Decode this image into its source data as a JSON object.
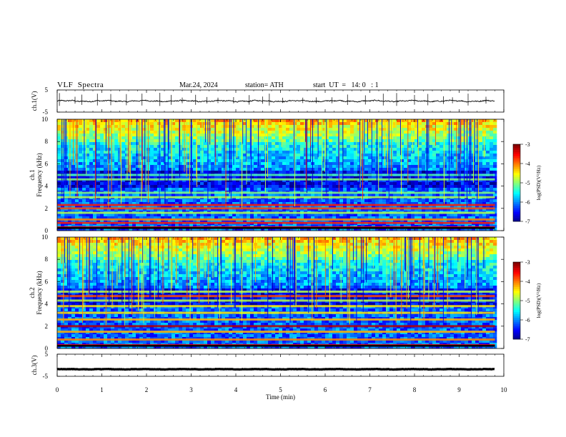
{
  "header": {
    "title": "VLF  Spectra",
    "date": "Mar.24, 2024",
    "station": "station= ATH",
    "start": "start  UT  =   14: 0   : 1"
  },
  "chart_data": [
    {
      "type": "line",
      "panel": "ch1-waveform",
      "ylabel": "ch.1(V)",
      "yticks": [
        "5",
        "-5"
      ],
      "ylim": [
        -5,
        5
      ],
      "xlim": [
        0,
        10
      ],
      "data_end_min": 9.8,
      "level": 0.0,
      "amplitude": 0.5,
      "spikes": [
        0.05,
        0.4,
        0.55,
        0.9,
        1.2,
        1.55,
        1.9,
        2.3,
        2.55,
        2.8,
        3.1,
        3.35,
        3.6,
        3.95,
        4.3,
        4.6,
        4.75,
        5.05,
        5.5,
        5.8,
        6.15,
        6.5,
        6.9,
        7.3,
        7.6,
        8.0,
        8.3,
        8.65,
        8.85,
        9.2,
        9.6
      ]
    },
    {
      "type": "heatmap",
      "panel": "ch1-spectrogram",
      "channel": "ch.1",
      "ylabel": "Frequency  (kHz)",
      "yticks": [
        "0",
        "2",
        "4",
        "6",
        "8",
        "10"
      ],
      "ylim": [
        0,
        10
      ],
      "xlim": [
        0,
        10
      ],
      "data_end_min": 9.8,
      "bands": [
        {
          "f": 0.3,
          "level": 0.9
        },
        {
          "f": 0.7,
          "level": 0.85
        },
        {
          "f": 1.0,
          "level": 0.75
        },
        {
          "f": 1.6,
          "level": 0.55
        },
        {
          "f": 2.0,
          "level": 0.8
        },
        {
          "f": 2.3,
          "level": 0.85
        },
        {
          "f": 3.0,
          "level": 0.55
        },
        {
          "f": 3.4,
          "level": 0.5
        },
        {
          "f": 4.6,
          "level": 0.5
        },
        {
          "f": 5.0,
          "level": 0.45
        }
      ],
      "colorbar": {
        "label": "log(PSD)(V²/Hz)",
        "ticks": [
          "-3",
          "-4",
          "-5",
          "-6",
          "-7"
        ],
        "range": [
          -7,
          -3
        ]
      }
    },
    {
      "type": "heatmap",
      "panel": "ch2-spectrogram",
      "channel": "ch.2",
      "ylabel": "Frequency  (kHz)",
      "yticks": [
        "0",
        "2",
        "4",
        "6",
        "8",
        "10"
      ],
      "ylim": [
        0,
        10
      ],
      "xlim": [
        0,
        10
      ],
      "data_end_min": 9.8,
      "bands": [
        {
          "f": 0.3,
          "level": 0.9
        },
        {
          "f": 0.8,
          "level": 0.75
        },
        {
          "f": 1.5,
          "level": 0.7
        },
        {
          "f": 2.0,
          "level": 0.95
        },
        {
          "f": 2.6,
          "level": 0.7
        },
        {
          "f": 3.2,
          "level": 0.65
        },
        {
          "f": 3.8,
          "level": 0.65
        },
        {
          "f": 4.3,
          "level": 0.55
        },
        {
          "f": 4.7,
          "level": 0.8
        },
        {
          "f": 5.1,
          "level": 0.55
        }
      ],
      "colorbar": {
        "label": "log(PSD)(V²/Hz)",
        "ticks": [
          "-3",
          "-4",
          "-5",
          "-6",
          "-7"
        ],
        "range": [
          -7,
          -3
        ]
      }
    },
    {
      "type": "line",
      "panel": "ch3-waveform",
      "ylabel": "ch.3(V)",
      "yticks": [
        "5",
        "-5"
      ],
      "ylim": [
        -5,
        5
      ],
      "xlim": [
        0,
        10
      ],
      "data_end_min": 9.8,
      "level": -1.8,
      "amplitude": 0.15,
      "xlabel": "Time  (min)",
      "xticks": [
        "0",
        "1",
        "2",
        "3",
        "4",
        "5",
        "6",
        "7",
        "8",
        "9",
        "10"
      ]
    }
  ]
}
